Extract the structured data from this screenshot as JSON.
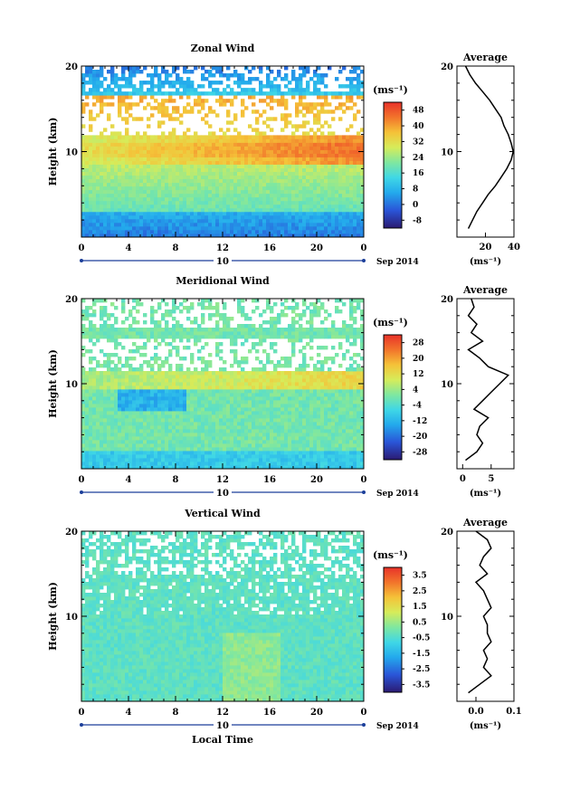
{
  "chart_data": [
    {
      "type": "heatmap",
      "title": "Zonal Wind",
      "ylabel": "Height (km)",
      "xlabel": "",
      "unit_label": "(ms⁻¹)",
      "xlim": [
        0,
        24
      ],
      "ylim": [
        0,
        20
      ],
      "xticks": [
        "0",
        "4",
        "8",
        "12",
        "16",
        "20",
        "0"
      ],
      "yticks": [
        "10",
        "20"
      ],
      "date_day": "10",
      "date_label": "Sep 2014",
      "colorbar": {
        "levels": [
          -8,
          0,
          8,
          16,
          24,
          32,
          40,
          48
        ],
        "ticks": [
          "-8",
          "0",
          "8",
          "16",
          "24",
          "32",
          "40",
          "48"
        ]
      },
      "average": {
        "title": "Average",
        "xlim": [
          0,
          40
        ],
        "xticks": [
          "20",
          "40"
        ],
        "xlabel": "(ms⁻¹)",
        "yticks": [
          "10",
          "20"
        ],
        "height": [
          1,
          2,
          3,
          4,
          5,
          6,
          7,
          8,
          9,
          10,
          11,
          12,
          13,
          14,
          15,
          16,
          17,
          18,
          19,
          20
        ],
        "value": [
          8,
          11,
          14,
          18,
          22,
          27,
          31,
          35,
          38,
          39.5,
          38,
          36,
          33,
          31,
          27,
          23,
          18,
          13,
          9,
          6
        ]
      }
    },
    {
      "type": "heatmap",
      "title": "Meridional Wind",
      "ylabel": "Height (km)",
      "xlabel": "",
      "unit_label": "(ms⁻¹)",
      "xlim": [
        0,
        24
      ],
      "ylim": [
        0,
        20
      ],
      "xticks": [
        "0",
        "4",
        "8",
        "12",
        "16",
        "20",
        "0"
      ],
      "yticks": [
        "10",
        "20"
      ],
      "date_day": "10",
      "date_label": "Sep 2014",
      "colorbar": {
        "levels": [
          -28,
          -20,
          -12,
          -4,
          4,
          12,
          20,
          28
        ],
        "ticks": [
          "-28",
          "-20",
          "-12",
          "-4",
          "4",
          "12",
          "20",
          "28"
        ]
      },
      "average": {
        "title": "Average",
        "xlim": [
          -1,
          9
        ],
        "xticks": [
          "0",
          "5"
        ],
        "xlabel": "(ms⁻¹)",
        "yticks": [
          "10",
          "20"
        ],
        "height": [
          1,
          2,
          3,
          4,
          5,
          6,
          7,
          8,
          9,
          10,
          11,
          12,
          13,
          14,
          15,
          16,
          17,
          18,
          19,
          20
        ],
        "value": [
          0.5,
          2.5,
          3.5,
          2.5,
          3.0,
          4.5,
          2.0,
          3.5,
          5.0,
          6.5,
          8.0,
          4.5,
          3.0,
          1.0,
          3.5,
          1.5,
          2.5,
          1.0,
          2.0,
          1.5
        ]
      }
    },
    {
      "type": "heatmap",
      "title": "Vertical Wind",
      "ylabel": "Height (km)",
      "xlabel": "Local Time",
      "unit_label": "(ms⁻¹)",
      "xlim": [
        0,
        24
      ],
      "ylim": [
        0,
        20
      ],
      "xticks": [
        "0",
        "4",
        "8",
        "12",
        "16",
        "20",
        "0"
      ],
      "yticks": [
        "10",
        "20"
      ],
      "date_day": "10",
      "date_label": "Sep 2014",
      "colorbar": {
        "levels": [
          -3.5,
          -2.5,
          -1.5,
          -0.5,
          0.5,
          1.5,
          2.5,
          3.5
        ],
        "ticks": [
          "-3.5",
          "-2.5",
          "-1.5",
          "-0.5",
          "0.5",
          "1.5",
          "2.5",
          "3.5"
        ]
      },
      "average": {
        "title": "Average",
        "xlim": [
          -0.05,
          0.1
        ],
        "xticks": [
          "0.0",
          "0.1"
        ],
        "xlabel": "(ms⁻¹)",
        "yticks": [
          "10",
          "20"
        ],
        "height": [
          1,
          2,
          3,
          4,
          5,
          6,
          7,
          8,
          9,
          10,
          11,
          12,
          13,
          14,
          15,
          16,
          17,
          18,
          19,
          20
        ],
        "value": [
          -0.02,
          0.01,
          0.04,
          0.02,
          0.03,
          0.02,
          0.04,
          0.03,
          0.03,
          0.02,
          0.04,
          0.03,
          0.02,
          0.0,
          0.03,
          0.01,
          0.02,
          0.04,
          0.03,
          0.0
        ]
      }
    }
  ]
}
